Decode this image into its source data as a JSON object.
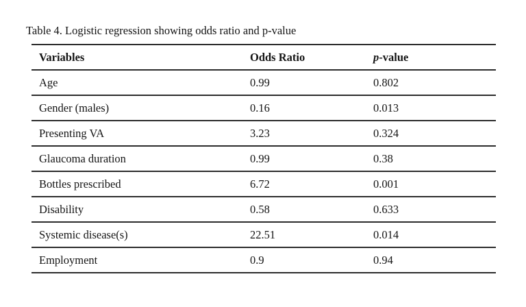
{
  "document": {
    "title": "Table 4. Logistic regression showing odds ratio and p-value"
  },
  "table": {
    "columns": [
      {
        "italic_prefix": "",
        "label": "Variables"
      },
      {
        "italic_prefix": "",
        "label": "Odds Ratio"
      },
      {
        "italic_prefix": "p",
        "label": "-value"
      }
    ],
    "rows": [
      [
        "Age",
        "0.99",
        "0.802"
      ],
      [
        "Gender (males)",
        "0.16",
        "0.013"
      ],
      [
        "Presenting VA",
        "3.23",
        "0.324"
      ],
      [
        "Glaucoma duration",
        "0.99",
        "0.38"
      ],
      [
        "Bottles prescribed",
        "6.72",
        "0.001"
      ],
      [
        "Disability",
        "0.58",
        "0.633"
      ],
      [
        "Systemic disease(s)",
        "22.51",
        "0.014"
      ],
      [
        "Employment",
        "0.9",
        "0.94"
      ]
    ]
  }
}
